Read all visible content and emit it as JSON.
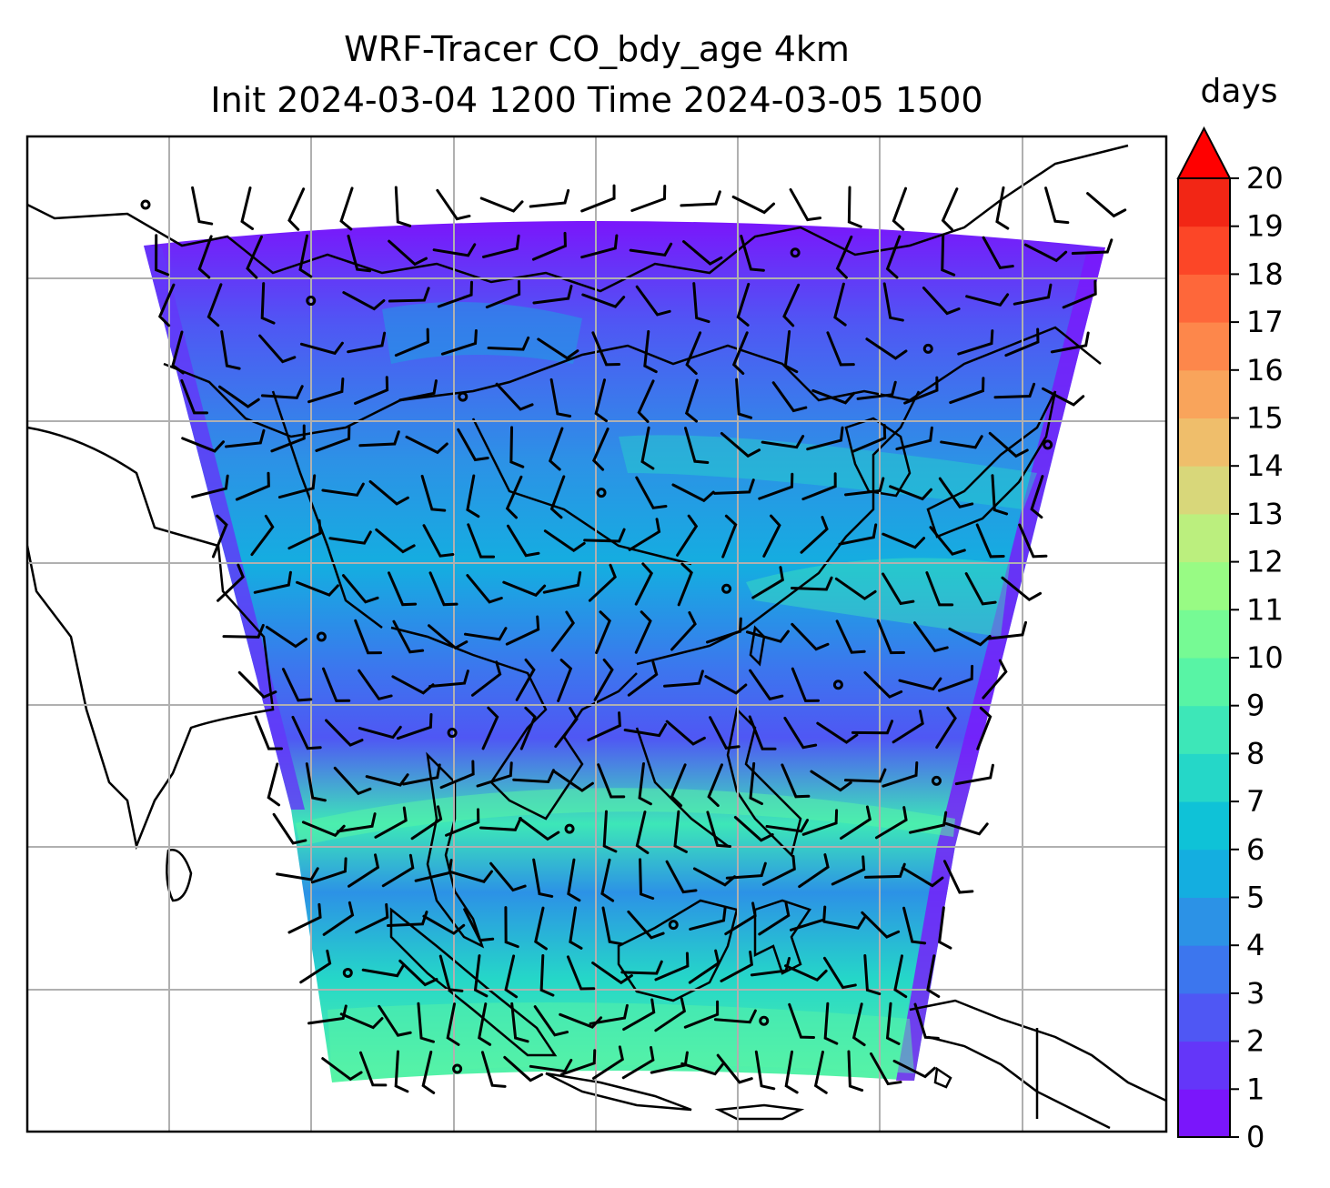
{
  "title_line1": "WRF-Tracer CO_bdy_age 4km",
  "title_line2": "Init 2024-03-04 1200 Time 2024-03-05 1500",
  "colorbar": {
    "units": "days",
    "ticks": [
      "0",
      "1",
      "2",
      "3",
      "4",
      "5",
      "6",
      "7",
      "8",
      "9",
      "10",
      "11",
      "12",
      "13",
      "14",
      "15",
      "16",
      "17",
      "18",
      "19",
      "20"
    ],
    "min": 0,
    "max": 20,
    "extend": "max",
    "colors": [
      "#7a16fb",
      "#6436f9",
      "#4f57f4",
      "#3c76ee",
      "#2c92e6",
      "#14aee0",
      "#0fc2d7",
      "#25d7c8",
      "#3de7b8",
      "#58f4a5",
      "#76fa94",
      "#98fb84",
      "#bbef7e",
      "#d8d77a",
      "#efbe6b",
      "#f9a45b",
      "#fd874b",
      "#fe673a",
      "#fc4627",
      "#f22615",
      "#ff0000"
    ]
  },
  "map": {
    "gridlines": true,
    "wind_barbs": true,
    "coastlines": true
  }
}
